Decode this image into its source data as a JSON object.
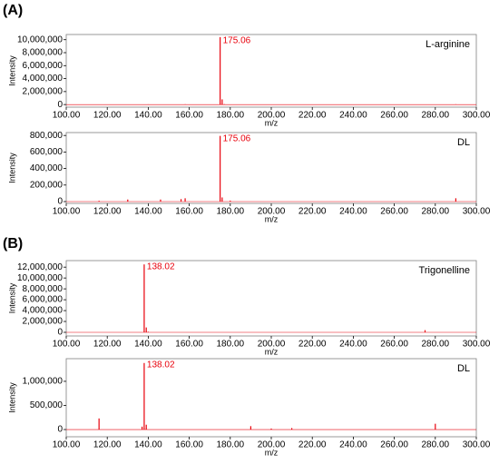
{
  "panel_labels": [
    "(A)",
    "(B)"
  ],
  "chart_data": [
    {
      "type": "bar",
      "sample": "L-arginine",
      "xlabel": "m/z",
      "ylabel": "Intensity",
      "color": "#e8000b",
      "x": [
        140.0,
        158.0,
        175.06,
        176.05,
        177.1,
        290.0
      ],
      "values": [
        30000,
        40000,
        10400000,
        800000,
        60000,
        40000
      ],
      "annotations": [
        {
          "text": "175.06",
          "x": 175.06
        }
      ],
      "xlim": [
        100,
        300
      ],
      "ylim": [
        -400000,
        10800000
      ],
      "xticks": [
        {
          "value": 100,
          "label": "100.00"
        },
        {
          "value": 120,
          "label": "120.00"
        },
        {
          "value": 140,
          "label": "140.00"
        },
        {
          "value": 160,
          "label": "160.00"
        },
        {
          "value": 180,
          "label": "180.00"
        },
        {
          "value": 200,
          "label": "200.00"
        },
        {
          "value": 220,
          "label": "220.00"
        },
        {
          "value": 240,
          "label": "240.00"
        },
        {
          "value": 260,
          "label": "260.00"
        },
        {
          "value": 280,
          "label": "280.00"
        },
        {
          "value": 300,
          "label": "300.00"
        }
      ],
      "yticks": [
        0,
        {
          "value": 2000000,
          "label": "2,000,000"
        },
        {
          "value": 4000000,
          "label": "4,000,000"
        },
        {
          "value": 6000000,
          "label": "6,000,000"
        },
        {
          "value": 8000000,
          "label": "8,000,000"
        },
        {
          "value": 10000000,
          "label": "10,000,000"
        }
      ]
    },
    {
      "type": "bar",
      "sample": "DL",
      "xlabel": "m/z",
      "ylabel": "Intensity",
      "color": "#e8000b",
      "x": [
        116.0,
        130.0,
        146.0,
        156.0,
        158.0,
        175.06,
        176.05,
        180.0,
        290.0
      ],
      "values": [
        10000,
        25000,
        25000,
        30000,
        40000,
        795000,
        50000,
        12000,
        40000
      ],
      "annotations": [
        {
          "text": "175.06",
          "x": 175.06
        }
      ],
      "xlim": [
        100,
        300
      ],
      "ylim": [
        -22000,
        835000
      ],
      "xticks": [
        {
          "value": 100,
          "label": "100.00"
        },
        {
          "value": 120,
          "label": "120.00"
        },
        {
          "value": 140,
          "label": "140.00"
        },
        {
          "value": 160,
          "label": "160.00"
        },
        {
          "value": 180,
          "label": "180.00"
        },
        {
          "value": 200,
          "label": "200.00"
        },
        {
          "value": 220,
          "label": "220.00"
        },
        {
          "value": 240,
          "label": "240.00"
        },
        {
          "value": 260,
          "label": "260.00"
        },
        {
          "value": 280,
          "label": "280.00"
        },
        {
          "value": 300,
          "label": "300.00"
        }
      ],
      "yticks": [
        0,
        {
          "value": 200000,
          "label": "200,000"
        },
        {
          "value": 400000,
          "label": "400,000"
        },
        {
          "value": 600000,
          "label": "600,000"
        },
        {
          "value": 800000,
          "label": "800,000"
        }
      ]
    },
    {
      "type": "bar",
      "sample": "Trigonelline",
      "xlabel": "m/z",
      "ylabel": "Intensity",
      "color": "#e8000b",
      "x": [
        138.02,
        139.03,
        140.0,
        275.0
      ],
      "values": [
        12500000,
        900000,
        100000,
        400000
      ],
      "annotations": [
        {
          "text": "138.02",
          "x": 138.02
        }
      ],
      "xlim": [
        100,
        300
      ],
      "ylim": [
        -670000,
        13200000
      ],
      "xticks": [
        {
          "value": 100,
          "label": "100.00"
        },
        {
          "value": 120,
          "label": "120.00"
        },
        {
          "value": 140,
          "label": "140.00"
        },
        {
          "value": 160,
          "label": "160.00"
        },
        {
          "value": 180,
          "label": "180.00"
        },
        {
          "value": 200,
          "label": "200.00"
        },
        {
          "value": 220,
          "label": "220.00"
        },
        {
          "value": 240,
          "label": "240.00"
        },
        {
          "value": 260,
          "label": "260.00"
        },
        {
          "value": 280,
          "label": "280.00"
        },
        {
          "value": 300,
          "label": "300.00"
        }
      ],
      "yticks": [
        0,
        {
          "value": 2000000,
          "label": "2,000,000"
        },
        {
          "value": 4000000,
          "label": "4,000,000"
        },
        {
          "value": 6000000,
          "label": "6,000,000"
        },
        {
          "value": 8000000,
          "label": "8,000,000"
        },
        {
          "value": 10000000,
          "label": "10,000,000"
        },
        {
          "value": 12000000,
          "label": "12,000,000"
        }
      ]
    },
    {
      "type": "bar",
      "sample": "DL",
      "xlabel": "m/z",
      "ylabel": "Intensity",
      "color": "#e8000b",
      "x": [
        116.0,
        137.0,
        138.02,
        139.03,
        190.0,
        200.0,
        210.0,
        280.0
      ],
      "values": [
        230000,
        60000,
        1380000,
        100000,
        70000,
        20000,
        30000,
        120000
      ],
      "annotations": [
        {
          "text": "138.02",
          "x": 138.02
        }
      ],
      "xlim": [
        100,
        300
      ],
      "ylim": [
        -150000,
        1470000
      ],
      "xticks": [
        {
          "value": 100,
          "label": "100.00"
        },
        {
          "value": 120,
          "label": "120.00"
        },
        {
          "value": 140,
          "label": "140.00"
        },
        {
          "value": 160,
          "label": "160.00"
        },
        {
          "value": 180,
          "label": "180.00"
        },
        {
          "value": 200,
          "label": "200.00"
        },
        {
          "value": 220,
          "label": "220.00"
        },
        {
          "value": 240,
          "label": "240.00"
        },
        {
          "value": 260,
          "label": "260.00"
        },
        {
          "value": 280,
          "label": "280.00"
        },
        {
          "value": 300,
          "label": "300.00"
        }
      ],
      "yticks": [
        0,
        {
          "value": 500000,
          "label": "500,000"
        },
        {
          "value": 1000000,
          "label": "1,000,000"
        }
      ]
    }
  ]
}
